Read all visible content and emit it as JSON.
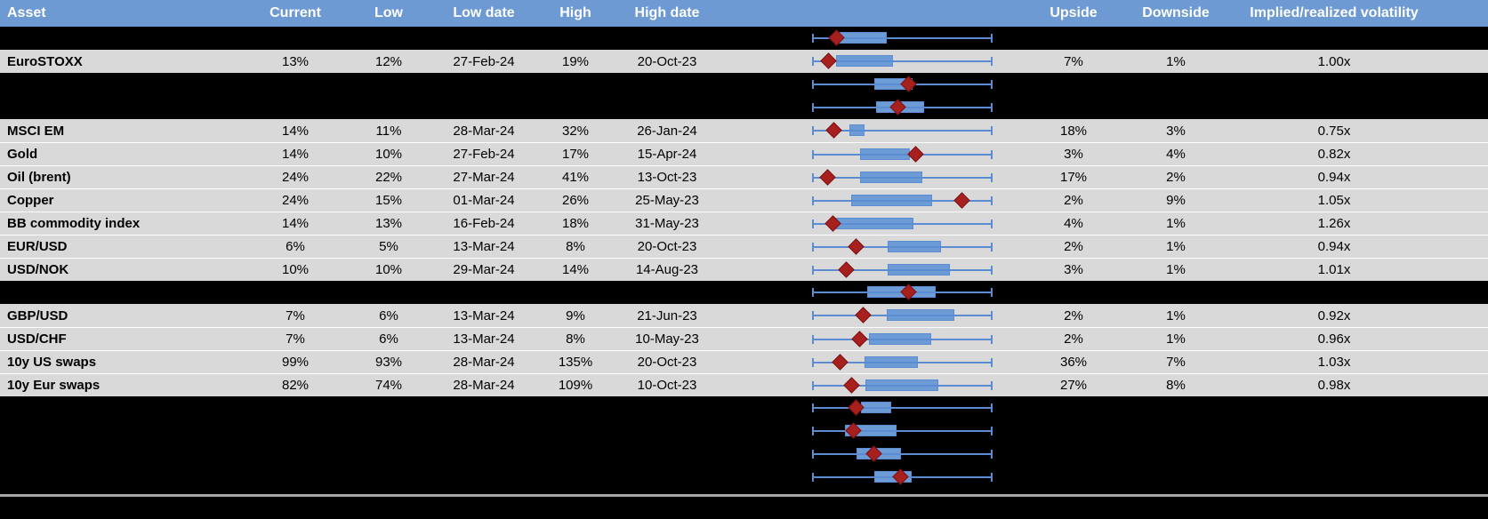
{
  "header": {
    "columns": [
      "Asset",
      "Current",
      "Low",
      "Low date",
      "High",
      "High date",
      "Upside",
      "Downside",
      "Implied/realized volatility"
    ]
  },
  "colors": {
    "header_bg": "#6D9AD3",
    "row_bg": "#D9D9D9",
    "hidden_row_bg": "#000000",
    "box_fill": "#6D9BD6",
    "whisker": "#5B8BD0",
    "marker_fill": "#A6201E",
    "divider": "#A6A6A6"
  },
  "rows": [
    {
      "type": "hidden",
      "box": [
        0.148,
        0.414
      ],
      "marker": 0.138
    },
    {
      "type": "data",
      "asset": "EuroSTOXX",
      "current": "13%",
      "low": "12%",
      "low_date": "27-Feb-24",
      "high": "19%",
      "high_date": "20-Oct-23",
      "upside": "7%",
      "downside": "1%",
      "iv_rv": "1.00x",
      "box": [
        0.133,
        0.448
      ],
      "marker": 0.094
    },
    {
      "type": "hidden",
      "box": [
        0.345,
        0.557
      ],
      "marker": 0.537
    },
    {
      "type": "hidden",
      "box": [
        0.355,
        0.621
      ],
      "marker": 0.478
    },
    {
      "type": "data",
      "asset": "MSCI EM",
      "current": "14%",
      "low": "11%",
      "low_date": "28-Mar-24",
      "high": "32%",
      "high_date": "26-Jan-24",
      "upside": "18%",
      "downside": "3%",
      "iv_rv": "0.75x",
      "box": [
        0.207,
        0.291
      ],
      "marker": 0.123
    },
    {
      "type": "data",
      "asset": "Gold",
      "current": "14%",
      "low": "10%",
      "low_date": "27-Feb-24",
      "high": "17%",
      "high_date": "15-Apr-24",
      "upside": "3%",
      "downside": "4%",
      "iv_rv": "0.82x",
      "box": [
        0.266,
        0.542
      ],
      "marker": 0.576
    },
    {
      "type": "data",
      "asset": "Oil (brent)",
      "current": "24%",
      "low": "22%",
      "low_date": "27-Mar-24",
      "high": "41%",
      "high_date": "13-Oct-23",
      "upside": "17%",
      "downside": "2%",
      "iv_rv": "0.94x",
      "box": [
        0.266,
        0.611
      ],
      "marker": 0.089
    },
    {
      "type": "data",
      "asset": "Copper",
      "current": "24%",
      "low": "15%",
      "low_date": "01-Mar-24",
      "high": "26%",
      "high_date": "25-May-23",
      "upside": "2%",
      "downside": "9%",
      "iv_rv": "1.05x",
      "box": [
        0.217,
        0.665
      ],
      "marker": 0.833
    },
    {
      "type": "data",
      "asset": "BB commodity index",
      "current": "14%",
      "low": "13%",
      "low_date": "16-Feb-24",
      "high": "18%",
      "high_date": "31-May-23",
      "upside": "4%",
      "downside": "1%",
      "iv_rv": "1.26x",
      "box": [
        0.133,
        0.562
      ],
      "marker": 0.118
    },
    {
      "type": "data",
      "asset": "EUR/USD",
      "current": "6%",
      "low": "5%",
      "low_date": "13-Mar-24",
      "high": "8%",
      "high_date": "20-Oct-23",
      "upside": "2%",
      "downside": "1%",
      "iv_rv": "0.94x",
      "box": [
        0.419,
        0.714
      ],
      "marker": 0.246
    },
    {
      "type": "data",
      "asset": "USD/NOK",
      "current": "10%",
      "low": "10%",
      "low_date": "29-Mar-24",
      "high": "14%",
      "high_date": "14-Aug-23",
      "upside": "3%",
      "downside": "1%",
      "iv_rv": "1.01x",
      "box": [
        0.419,
        0.764
      ],
      "marker": 0.192
    },
    {
      "type": "hidden",
      "box": [
        0.305,
        0.685
      ],
      "marker": 0.537
    },
    {
      "type": "data",
      "asset": "GBP/USD",
      "current": "7%",
      "low": "6%",
      "low_date": "13-Mar-24",
      "high": "9%",
      "high_date": "21-Jun-23",
      "upside": "2%",
      "downside": "1%",
      "iv_rv": "0.92x",
      "box": [
        0.414,
        0.788
      ],
      "marker": 0.286
    },
    {
      "type": "data",
      "asset": "USD/CHF",
      "current": "7%",
      "low": "6%",
      "low_date": "13-Mar-24",
      "high": "8%",
      "high_date": "10-May-23",
      "upside": "2%",
      "downside": "1%",
      "iv_rv": "0.96x",
      "box": [
        0.315,
        0.66
      ],
      "marker": 0.266
    },
    {
      "type": "data",
      "asset": "10y US swaps",
      "current": "99%",
      "low": "93%",
      "low_date": "28-Mar-24",
      "high": "135%",
      "high_date": "20-Oct-23",
      "upside": "36%",
      "downside": "7%",
      "iv_rv": "1.03x",
      "box": [
        0.291,
        0.586
      ],
      "marker": 0.158
    },
    {
      "type": "data",
      "asset": "10y Eur swaps",
      "current": "82%",
      "low": "74%",
      "low_date": "28-Mar-24",
      "high": "109%",
      "high_date": "10-Oct-23",
      "upside": "27%",
      "downside": "8%",
      "iv_rv": "0.98x",
      "box": [
        0.296,
        0.7
      ],
      "marker": 0.222
    },
    {
      "type": "hidden",
      "box": [
        0.271,
        0.438
      ],
      "marker": 0.246
    },
    {
      "type": "hidden",
      "box": [
        0.182,
        0.468
      ],
      "marker": 0.232
    },
    {
      "type": "hidden",
      "box": [
        0.246,
        0.493
      ],
      "marker": 0.345
    },
    {
      "type": "hidden",
      "box": [
        0.345,
        0.552
      ],
      "marker": 0.493
    }
  ],
  "chart_data": {
    "type": "boxplot",
    "orientation": "horizontal",
    "note": "One normalized min-max box plot per table row; whiskers span full 0-1 range for every row; box = inner range, diamond marker = current level",
    "xlim": [
      0,
      1
    ],
    "rows": [
      {
        "label": "",
        "whiskers": [
          0,
          1
        ],
        "box": [
          0.148,
          0.414
        ],
        "marker": 0.138
      },
      {
        "label": "EuroSTOXX",
        "whiskers": [
          0,
          1
        ],
        "box": [
          0.133,
          0.448
        ],
        "marker": 0.094
      },
      {
        "label": "",
        "whiskers": [
          0,
          1
        ],
        "box": [
          0.345,
          0.557
        ],
        "marker": 0.537
      },
      {
        "label": "",
        "whiskers": [
          0,
          1
        ],
        "box": [
          0.355,
          0.621
        ],
        "marker": 0.478
      },
      {
        "label": "MSCI EM",
        "whiskers": [
          0,
          1
        ],
        "box": [
          0.207,
          0.291
        ],
        "marker": 0.123
      },
      {
        "label": "Gold",
        "whiskers": [
          0,
          1
        ],
        "box": [
          0.266,
          0.542
        ],
        "marker": 0.576
      },
      {
        "label": "Oil (brent)",
        "whiskers": [
          0,
          1
        ],
        "box": [
          0.266,
          0.611
        ],
        "marker": 0.089
      },
      {
        "label": "Copper",
        "whiskers": [
          0,
          1
        ],
        "box": [
          0.217,
          0.665
        ],
        "marker": 0.833
      },
      {
        "label": "BB commodity index",
        "whiskers": [
          0,
          1
        ],
        "box": [
          0.133,
          0.562
        ],
        "marker": 0.118
      },
      {
        "label": "EUR/USD",
        "whiskers": [
          0,
          1
        ],
        "box": [
          0.419,
          0.714
        ],
        "marker": 0.246
      },
      {
        "label": "USD/NOK",
        "whiskers": [
          0,
          1
        ],
        "box": [
          0.419,
          0.764
        ],
        "marker": 0.192
      },
      {
        "label": "",
        "whiskers": [
          0,
          1
        ],
        "box": [
          0.305,
          0.685
        ],
        "marker": 0.537
      },
      {
        "label": "GBP/USD",
        "whiskers": [
          0,
          1
        ],
        "box": [
          0.414,
          0.788
        ],
        "marker": 0.286
      },
      {
        "label": "USD/CHF",
        "whiskers": [
          0,
          1
        ],
        "box": [
          0.315,
          0.66
        ],
        "marker": 0.266
      },
      {
        "label": "10y US swaps",
        "whiskers": [
          0,
          1
        ],
        "box": [
          0.291,
          0.586
        ],
        "marker": 0.158
      },
      {
        "label": "10y Eur swaps",
        "whiskers": [
          0,
          1
        ],
        "box": [
          0.296,
          0.7
        ],
        "marker": 0.222
      },
      {
        "label": "",
        "whiskers": [
          0,
          1
        ],
        "box": [
          0.271,
          0.438
        ],
        "marker": 0.246
      },
      {
        "label": "",
        "whiskers": [
          0,
          1
        ],
        "box": [
          0.182,
          0.468
        ],
        "marker": 0.232
      },
      {
        "label": "",
        "whiskers": [
          0,
          1
        ],
        "box": [
          0.246,
          0.493
        ],
        "marker": 0.345
      },
      {
        "label": "",
        "whiskers": [
          0,
          1
        ],
        "box": [
          0.345,
          0.552
        ],
        "marker": 0.493
      }
    ]
  }
}
